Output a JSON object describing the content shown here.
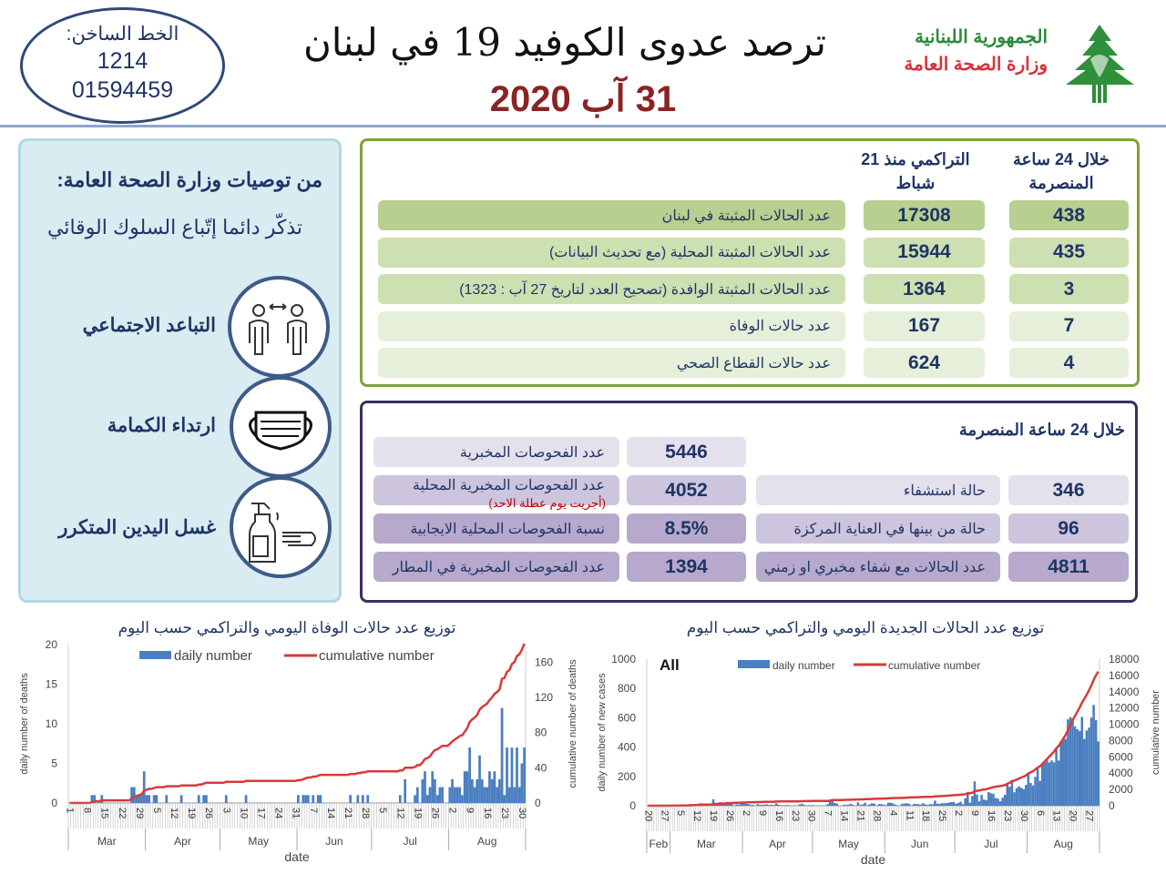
{
  "header": {
    "hotline_label": "الخط الساخن:",
    "hotline_1": "1214",
    "hotline_2": "01594459",
    "title": "ترصد عدوى الكوفيد 19 في لبنان",
    "date": "31 آب 2020",
    "ministry_line1": "الجمهورية اللبنانية",
    "ministry_line2": "وزارة الصحة العامة",
    "logo": "cedar-logo"
  },
  "recommendations": {
    "title": "من توصيات وزارة الصحة العامة:",
    "subtitle": "تذكّر دائما إتّباع السلوك الوقائي",
    "items": [
      {
        "label": "التباعد الاجتماعي",
        "icon": "social-distancing-icon"
      },
      {
        "label": "ارتداء الكمامة",
        "icon": "face-mask-icon"
      },
      {
        "label": "غسل اليدين المتكرر",
        "icon": "hand-sanitizer-icon"
      }
    ]
  },
  "cases_table": {
    "col_daily": "خلال 24 ساعة المنصرمة",
    "col_cumulative": "التراكمي منذ 21 شباط",
    "rows": [
      {
        "label": "عدد الحالات المثبتة في لبنان",
        "cumulative": "17308",
        "daily": "438"
      },
      {
        "label": "عدد الحالات المثبتة المحلية  (مع تحديث البيانات)",
        "cumulative": "15944",
        "daily": "435"
      },
      {
        "label": "عدد الحالات المثبتة الوافدة (تصحيح العدد لتاريخ 27 آب : 1323)",
        "cumulative": "1364",
        "daily": "3"
      },
      {
        "label": "عدد حالات الوفاة",
        "cumulative": "167",
        "daily": "7"
      },
      {
        "label": "عدد حالات القطاع الصحي",
        "cumulative": "624",
        "daily": "4"
      }
    ]
  },
  "tests_table": {
    "title": "خلال 24 ساعة المنصرمة",
    "tests": [
      {
        "label": "عدد الفحوصات المخبرية",
        "value": "5446"
      },
      {
        "label": "عدد الفحوصات المخبرية  المحلية",
        "note": "(أجريت يوم عطلة الاحد)",
        "value": "4052"
      },
      {
        "label": "نسبة الفحوصات المحلية الايجابية",
        "value": "8.5%"
      },
      {
        "label": "عدد الفحوصات المخبرية في المطار",
        "value": "1394"
      }
    ],
    "hospital": [
      {
        "label": "حالة استشفاء",
        "value": "346"
      },
      {
        "label": "حالة من بينها في العناية المركزة",
        "value": "96"
      },
      {
        "label": "عدد الحالات مع شفاء مخبري او زمني",
        "value": "4811"
      }
    ]
  },
  "colors": {
    "green_border": "#7ea23d",
    "purple_border": "#3f2d5f",
    "bar": "#4a7fc1",
    "line": "#d9393b",
    "title_blue": "#1f3466",
    "date_red": "#8b2323"
  },
  "chart_data": [
    {
      "type": "bar+line",
      "title": "توزيع عدد حالات  الوفاة اليومي والتراكمي حسب اليوم",
      "xlabel": "date",
      "ylabel": "daily number of deaths",
      "ylabel_right": "cumulative number of deaths",
      "legend": [
        "daily number",
        "cumulative number"
      ],
      "legend_placement": "top",
      "start_date": "2020-03-01",
      "ylim": [
        0,
        20
      ],
      "yticks": [
        "0",
        "5",
        "10",
        "15",
        "20"
      ],
      "ylim_right": [
        0,
        180
      ],
      "yticks_right": [
        "0",
        "40",
        "80",
        "120",
        "160"
      ],
      "xticks": [
        "1",
        "8",
        "15",
        "22",
        "29",
        "5",
        "12",
        "19",
        "26",
        "3",
        "10",
        "17",
        "24",
        "31",
        "7",
        "14",
        "21",
        "28",
        "5",
        "12",
        "19",
        "26",
        "2",
        "9",
        "16",
        "23",
        "30"
      ],
      "months": [
        "Mar",
        "Apr",
        "May",
        "Jun",
        "Jul",
        "Aug"
      ],
      "daily": [
        0,
        0,
        0,
        0,
        0,
        0,
        0,
        0,
        0,
        1,
        1,
        0,
        0,
        1,
        0,
        0,
        0,
        0,
        0,
        0,
        0,
        0,
        0,
        0,
        0,
        2,
        2,
        1,
        1,
        1,
        4,
        1,
        1,
        0,
        1,
        1,
        0,
        0,
        0,
        1,
        0,
        0,
        0,
        0,
        0,
        1,
        0,
        0,
        0,
        0,
        0,
        0,
        1,
        0,
        1,
        1,
        0,
        0,
        0,
        0,
        0,
        0,
        0,
        1,
        0,
        0,
        0,
        0,
        0,
        0,
        0,
        1,
        0,
        0,
        0,
        0,
        0,
        0,
        0,
        0,
        0,
        0,
        0,
        0,
        0,
        0,
        0,
        0,
        0,
        0,
        0,
        0,
        1,
        0,
        1,
        1,
        1,
        0,
        1,
        0,
        1,
        1,
        0,
        0,
        0,
        0,
        0,
        0,
        0,
        0,
        0,
        0,
        0,
        1,
        0,
        0,
        1,
        0,
        1,
        0,
        1,
        0,
        0,
        0,
        0,
        0,
        0,
        0,
        0,
        0,
        0,
        0,
        0,
        1,
        0,
        3,
        0,
        0,
        0,
        1,
        2,
        0,
        3,
        4,
        1,
        2,
        4,
        3,
        1,
        2,
        2,
        0,
        0,
        2,
        3,
        2,
        2,
        2,
        1,
        4,
        4,
        7,
        3,
        2,
        3,
        6,
        3,
        2,
        2,
        4,
        3,
        4,
        2,
        3,
        12,
        1,
        7,
        2,
        7,
        2,
        7,
        2,
        5,
        7
      ]
    },
    {
      "type": "bar+line",
      "title": "توزيع عدد الحالات الجديدة اليومي والتراكمي حسب اليوم",
      "label": "All",
      "xlabel": "date",
      "ylabel": "daily number of new cases",
      "ylabel_right": "cumulative number",
      "legend": [
        "daily number",
        "cumulative number"
      ],
      "legend_placement": "top",
      "start_date": "2020-02-20",
      "ylim": [
        0,
        1000
      ],
      "yticks": [
        "0",
        "200",
        "400",
        "600",
        "800",
        "1000"
      ],
      "ylim_right": [
        0,
        18000
      ],
      "yticks_right": [
        "0",
        "2000",
        "4000",
        "6000",
        "8000",
        "10000",
        "12000",
        "14000",
        "16000",
        "18000"
      ],
      "xticks": [
        "20",
        "27",
        "5",
        "12",
        "19",
        "26",
        "2",
        "9",
        "16",
        "23",
        "30",
        "7",
        "14",
        "21",
        "28",
        "4",
        "11",
        "18",
        "25",
        "2",
        "9",
        "16",
        "23",
        "30",
        "6",
        "13",
        "20",
        "27"
      ],
      "months": [
        "Feb",
        "Mar",
        "Apr",
        "May",
        "Jun",
        "Jul",
        "Aug"
      ],
      "daily": [
        0,
        1,
        0,
        0,
        0,
        0,
        1,
        0,
        1,
        1,
        3,
        1,
        3,
        3,
        6,
        6,
        4,
        5,
        12,
        11,
        9,
        10,
        16,
        16,
        16,
        12,
        13,
        12,
        44,
        14,
        11,
        24,
        15,
        11,
        26,
        18,
        15,
        3,
        10,
        8,
        17,
        16,
        14,
        12,
        7,
        7,
        0,
        11,
        6,
        7,
        8,
        9,
        5,
        7,
        5,
        17,
        7,
        4,
        4,
        4,
        5,
        0,
        1,
        3,
        0,
        9,
        13,
        6,
        0,
        4,
        4,
        4,
        0,
        1,
        0,
        2,
        3,
        11,
        35,
        46,
        19,
        14,
        0,
        1,
        7,
        6,
        8,
        13,
        5,
        0,
        23,
        6,
        9,
        20,
        4,
        10,
        16,
        14,
        0,
        11,
        11,
        7,
        5,
        21,
        20,
        15,
        8,
        1,
        4,
        14,
        15,
        17,
        13,
        2,
        12,
        12,
        10,
        9,
        17,
        9,
        6,
        11,
        10,
        35,
        14,
        12,
        17,
        17,
        18,
        21,
        25,
        26,
        14,
        19,
        27,
        10,
        51,
        94,
        20,
        66,
        166,
        76,
        30,
        74,
        42,
        38,
        93,
        85,
        82,
        53,
        48,
        30,
        55,
        74,
        151,
        129,
        176,
        92,
        120,
        132,
        123,
        112,
        142,
        224,
        155,
        138,
        197,
        255,
        169,
        279,
        294,
        309,
        295,
        309,
        296,
        399,
        308,
        439,
        453,
        456,
        589,
        605,
        594,
        541,
        522,
        509,
        606,
        455,
        513,
        532,
        601,
        688,
        584,
        438
      ]
    }
  ]
}
